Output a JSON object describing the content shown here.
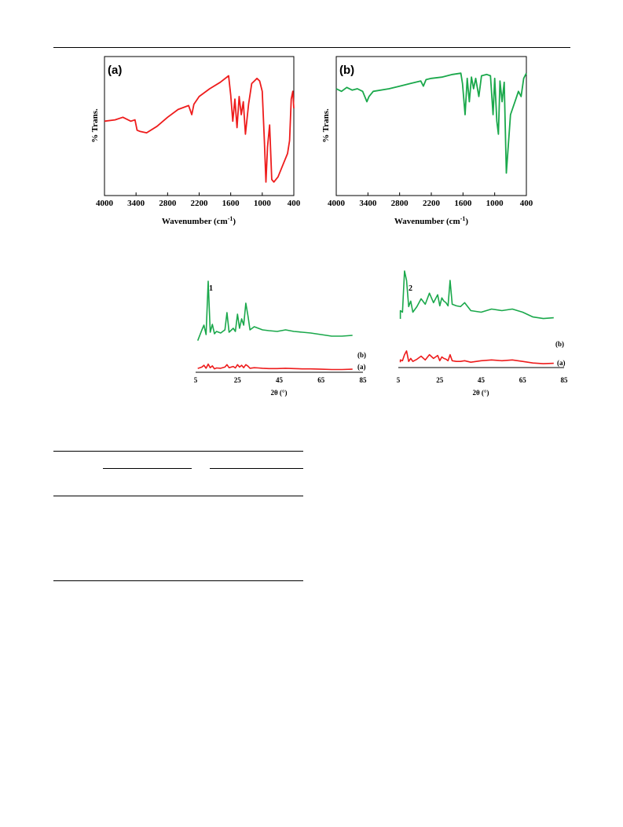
{
  "figures": {
    "ftir": [
      {
        "panel_label": "(a)",
        "xlabel": "Wavenumber (cm",
        "xlabel_sup": "-1",
        "xlabel_close": ")",
        "ylabel": "% Trans.",
        "color": "#ee1c1c"
      },
      {
        "panel_label": "(b)",
        "xlabel": "Wavenumber (cm",
        "xlabel_sup": "-1",
        "xlabel_close": ")",
        "ylabel": "% Trans.",
        "color": "#1aa84b"
      }
    ],
    "xrd": [
      {
        "panel_label": "1",
        "xlabel": "2θ (°)",
        "legend": [
          "(b)",
          "(a)"
        ],
        "colors": [
          "#1aa84b",
          "#ee1c1c"
        ]
      },
      {
        "panel_label": "2",
        "xlabel": "2θ (°)",
        "legend": [
          "(b)",
          "(a)"
        ],
        "colors": [
          "#1aa84b",
          "#ee1c1c"
        ]
      }
    ]
  },
  "chart_data": [
    {
      "type": "line",
      "title": "(a)",
      "xlabel": "Wavenumber (cm-1)",
      "ylabel": "% Trans.",
      "xlim": [
        4000,
        400
      ],
      "x_ticks": [
        4000,
        3400,
        2800,
        2200,
        1600,
        1000,
        400
      ],
      "y_ticks": [],
      "grid": false,
      "series": [
        {
          "color": "#ee1c1c",
          "x": [
            4000,
            3800,
            3650,
            3500,
            3420,
            3380,
            3320,
            3200,
            3000,
            2800,
            2600,
            2400,
            2340,
            2300,
            2200,
            2000,
            1800,
            1640,
            1600,
            1560,
            1520,
            1480,
            1440,
            1400,
            1360,
            1320,
            1260,
            1200,
            1150,
            1100,
            1050,
            1000,
            960,
            930,
            900,
            860,
            820,
            780,
            700,
            600,
            520,
            480,
            450,
            420,
            400
          ],
          "y": [
            55,
            56,
            58,
            55,
            56,
            48,
            47,
            46,
            51,
            58,
            64,
            67,
            60,
            68,
            74,
            80,
            85,
            90,
            75,
            55,
            72,
            50,
            74,
            60,
            70,
            45,
            68,
            84,
            86,
            88,
            86,
            78,
            40,
            8,
            35,
            52,
            10,
            8,
            12,
            22,
            30,
            40,
            72,
            78,
            65
          ]
        }
      ]
    },
    {
      "type": "line",
      "title": "(b)",
      "xlabel": "Wavenumber (cm-1)",
      "ylabel": "% Trans.",
      "xlim": [
        4000,
        400
      ],
      "x_ticks": [
        4000,
        3400,
        2800,
        2200,
        1600,
        1000,
        400
      ],
      "y_ticks": [],
      "grid": false,
      "series": [
        {
          "color": "#1aa84b",
          "x": [
            4000,
            3900,
            3800,
            3700,
            3600,
            3500,
            3420,
            3380,
            3300,
            3000,
            2800,
            2600,
            2400,
            2350,
            2300,
            2200,
            2000,
            1800,
            1640,
            1610,
            1560,
            1520,
            1480,
            1440,
            1400,
            1360,
            1300,
            1250,
            1150,
            1080,
            1030,
            1000,
            960,
            930,
            900,
            860,
            820,
            780,
            700,
            600,
            550,
            500,
            450,
            400
          ],
          "y": [
            80,
            78,
            81,
            79,
            80,
            78,
            70,
            74,
            78,
            80,
            82,
            84,
            86,
            82,
            87,
            88,
            89,
            91,
            92,
            84,
            60,
            88,
            70,
            89,
            80,
            88,
            74,
            90,
            91,
            90,
            60,
            88,
            55,
            45,
            86,
            70,
            85,
            15,
            60,
            72,
            78,
            74,
            88,
            92
          ]
        }
      ]
    },
    {
      "type": "line",
      "title": "1",
      "xlabel": "2θ (°)",
      "ylabel": "",
      "xlim": [
        5,
        85
      ],
      "x_ticks": [
        5,
        25,
        45,
        65,
        85
      ],
      "grid": false,
      "series": [
        {
          "name": "(b)",
          "color": "#1aa84b",
          "x": [
            8,
            9,
            10,
            11,
            12,
            13,
            14,
            15,
            17,
            19,
            20,
            21,
            23,
            24,
            25,
            26,
            27,
            28,
            29,
            30,
            31,
            33,
            35,
            37,
            40,
            44,
            48,
            52,
            56,
            60,
            65,
            70,
            75,
            80
          ],
          "y": [
            38,
            44,
            32,
            100,
            35,
            45,
            33,
            36,
            34,
            38,
            60,
            35,
            40,
            36,
            58,
            40,
            52,
            44,
            72,
            56,
            38,
            42,
            40,
            38,
            37,
            36,
            38,
            36,
            35,
            34,
            32,
            30,
            30,
            31
          ]
        },
        {
          "name": "(a)",
          "color": "#ee1c1c",
          "x": [
            8,
            9,
            10,
            11,
            12,
            13,
            14,
            15,
            17,
            19,
            20,
            21,
            23,
            24,
            25,
            26,
            27,
            28,
            29,
            30,
            31,
            33,
            35,
            37,
            40,
            44,
            48,
            52,
            56,
            60,
            65,
            70,
            75,
            80
          ],
          "y": [
            12,
            18,
            8,
            22,
            10,
            16,
            6,
            9,
            8,
            12,
            20,
            10,
            14,
            9,
            20,
            12,
            18,
            10,
            20,
            15,
            8,
            10,
            9,
            8,
            7,
            7,
            8,
            7,
            6,
            6,
            5,
            4,
            4,
            5
          ]
        }
      ]
    },
    {
      "type": "line",
      "title": "2",
      "xlabel": "2θ (°)",
      "ylabel": "",
      "xlim": [
        5,
        85
      ],
      "x_ticks": [
        5,
        25,
        45,
        65,
        85
      ],
      "grid": false,
      "series": [
        {
          "name": "(b)",
          "color": "#1aa84b",
          "x": [
            6,
            7,
            8,
            9,
            10,
            11,
            12,
            14,
            16,
            18,
            20,
            22,
            24,
            25,
            26,
            27,
            28,
            29,
            30,
            31,
            33,
            35,
            37,
            40,
            45,
            50,
            55,
            60,
            65,
            70,
            75,
            80
          ],
          "y": [
            50,
            48,
            100,
            88,
            55,
            62,
            48,
            55,
            65,
            58,
            72,
            60,
            70,
            56,
            66,
            62,
            60,
            56,
            88,
            58,
            56,
            55,
            60,
            50,
            48,
            52,
            50,
            52,
            48,
            42,
            40,
            41
          ]
        },
        {
          "name": "(a)",
          "color": "#ee1c1c",
          "x": [
            6,
            7,
            8,
            9,
            10,
            11,
            12,
            14,
            16,
            18,
            20,
            22,
            24,
            25,
            26,
            27,
            28,
            29,
            30,
            31,
            33,
            35,
            37,
            40,
            45,
            50,
            55,
            60,
            65,
            70,
            75,
            80
          ],
          "y": [
            16,
            14,
            30,
            40,
            12,
            20,
            12,
            18,
            26,
            16,
            30,
            20,
            28,
            14,
            24,
            20,
            18,
            14,
            30,
            14,
            12,
            12,
            14,
            10,
            14,
            16,
            14,
            16,
            12,
            8,
            6,
            7
          ]
        }
      ]
    }
  ]
}
